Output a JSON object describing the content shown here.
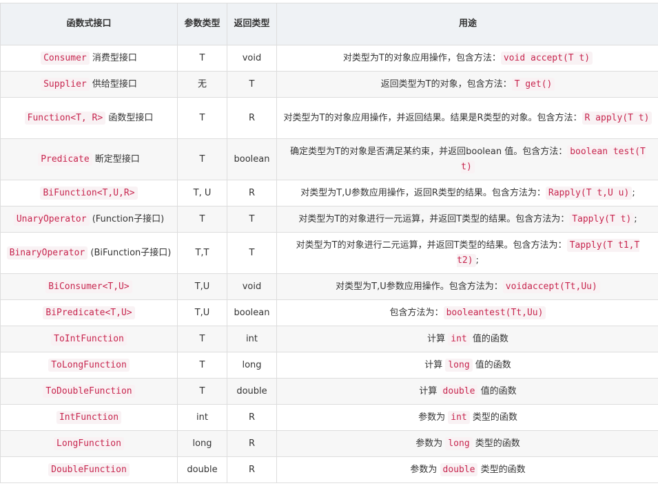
{
  "headers": [
    "函数式接口",
    "参数类型",
    "返回类型",
    "用途"
  ],
  "rows": [
    {
      "name": "Consumer",
      "suffix": " 消费型接口",
      "param": "T",
      "ret": "void",
      "pre": "对类型为T的对象应用操作，包含方法：",
      "code": "void accept(T t)",
      "post": ""
    },
    {
      "name": "Supplier",
      "suffix": " 供给型接口",
      "param": "无",
      "ret": "T",
      "pre": "返回类型为T的对象，包含方法：",
      "code": "T get()",
      "post": ""
    },
    {
      "name": "Function<T, R>",
      "suffix": " 函数型接口",
      "param": "T",
      "ret": "R",
      "pre": "对类型为T的对象应用操作，并返回结果。结果是R类型的对象。包含方法：",
      "code": "R apply(T t)",
      "post": ""
    },
    {
      "name": "Predicate",
      "suffix": " 断定型接口",
      "param": "T",
      "ret": "boolean",
      "pre": "确定类型为T的对象是否满足某约束，并返回boolean 值。包含方法：",
      "code": "boolean test(T t)",
      "post": ""
    },
    {
      "name": "BiFunction<T,U,R>",
      "suffix": "",
      "param": "T, U",
      "ret": "R",
      "pre": "对类型为T,U参数应用操作，返回R类型的结果。包含方法为：",
      "code": "Rapply(T t,U u)",
      "post": ";"
    },
    {
      "name": "UnaryOperator",
      "suffix": " (Function子接口)",
      "param": "T",
      "ret": "T",
      "pre": "对类型为T的对象进行一元运算，并返回T类型的结果。包含方法为：",
      "code": "Tapply(T t)",
      "post": ";"
    },
    {
      "name": "BinaryOperator",
      "suffix": " (BiFunction子接口)",
      "param": "T,T",
      "ret": "T",
      "pre": "对类型为T的对象进行二元运算，并返回T类型的结果。包含方法为：",
      "code": "Tapply(T t1,T t2)",
      "post": ";"
    },
    {
      "name": "BiConsumer<T,U>",
      "suffix": "",
      "param": "T,U",
      "ret": "void",
      "pre": "对类型为T,U参数应用操作。包含方法为：",
      "code": "voidaccept(Tt,Uu)",
      "post": ""
    },
    {
      "name": "BiPredicate<T,U>",
      "suffix": "",
      "param": "T,U",
      "ret": "boolean",
      "pre": "包含方法为：",
      "code": "booleantest(Tt,Uu)",
      "post": ""
    },
    {
      "name": "ToIntFunction",
      "suffix": "",
      "param": "T",
      "ret": "int",
      "pre": "计算 ",
      "code": "int",
      "post": " 值的函数"
    },
    {
      "name": "ToLongFunction",
      "suffix": "",
      "param": "T",
      "ret": "long",
      "pre": "计算 ",
      "code": "long",
      "post": " 值的函数"
    },
    {
      "name": "ToDoubleFunction",
      "suffix": "",
      "param": "T",
      "ret": "double",
      "pre": "计算 ",
      "code": "double",
      "post": " 值的函数"
    },
    {
      "name": "IntFunction",
      "suffix": "",
      "param": "int",
      "ret": "R",
      "pre": "参数为 ",
      "code": "int",
      "post": " 类型的函数"
    },
    {
      "name": "LongFunction",
      "suffix": "",
      "param": "long",
      "ret": "R",
      "pre": "参数为 ",
      "code": "long",
      "post": " 类型的函数"
    },
    {
      "name": "DoubleFunction",
      "suffix": "",
      "param": "double",
      "ret": "R",
      "pre": "参数为 ",
      "code": "double",
      "post": " 类型的函数"
    }
  ]
}
